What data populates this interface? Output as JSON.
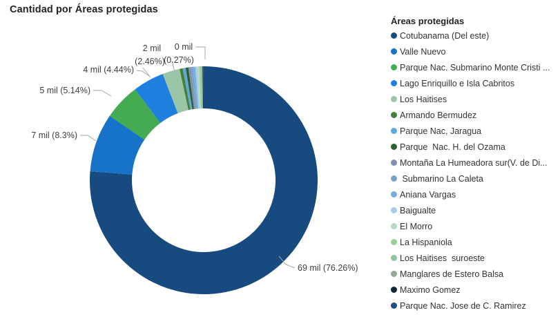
{
  "title": "Cantidad por Áreas protegidas",
  "legend": {
    "title": "Áreas protegidas"
  },
  "chart_data": {
    "type": "pie",
    "variant": "donut",
    "title": "Cantidad por Áreas protegidas",
    "legend_title": "Áreas protegidas",
    "legend_position": "right",
    "value_unit_label": "mil",
    "label_color": "#3F3F3F",
    "leader_color": "#A6A6A6",
    "slices": [
      {
        "name": "Cotubanama (Del este)",
        "color": "#174A7E",
        "pct": 76.26,
        "label_value": "69 mil",
        "label_pct": "(76.26%)"
      },
      {
        "name": "Valle Nuevo",
        "color": "#1673C8",
        "pct": 8.3,
        "label_value": "7 mil",
        "label_pct": "(8.3%)"
      },
      {
        "name": "Parque Nac. Submarino Monte Cristi ...",
        "color": "#45AB52",
        "pct": 5.14,
        "label_value": "5 mil",
        "label_pct": "(5.14%)"
      },
      {
        "name": "Lago Enriquillo e Isla Cabritos",
        "color": "#1E7FDE",
        "pct": 4.44,
        "label_value": "4 mil",
        "label_pct": "(4.44%)"
      },
      {
        "name": "Los Haitises",
        "color": "#9AC6A7",
        "pct": 2.46,
        "label_value": "2 mil",
        "label_pct": "(2.46%)"
      },
      {
        "name": "Armando Bermudez",
        "color": "#45803A",
        "pct": 0.45
      },
      {
        "name": "Parque Nac, Jaragua",
        "color": "#5FA8DD",
        "pct": 0.42
      },
      {
        "name": "Parque  Nac. H. del Ozama",
        "color": "#2D6032",
        "pct": 0.38
      },
      {
        "name": "Montaña La Humeadora sur(V. de Di...",
        "color": "#8191AE",
        "pct": 0.35
      },
      {
        "name": " Submarino La Caleta",
        "color": "#7BA2C9",
        "pct": 0.32
      },
      {
        "name": "Aniana Vargas",
        "color": "#75AFE0",
        "pct": 0.3
      },
      {
        "name": "Baigualte",
        "color": "#A8CBEA",
        "pct": 0.28
      },
      {
        "name": "El Morro",
        "color": "#B5D9C3",
        "pct": 0.27,
        "label_value": "0 mil",
        "label_pct": "(0.27%)"
      },
      {
        "name": "La Hispaniola",
        "color": "#97D294",
        "pct": 0.2
      },
      {
        "name": "Los Haitises  suroeste",
        "color": "#8FC69C",
        "pct": 0.15
      },
      {
        "name": "Manglares de Estero Balsa",
        "color": "#92A795",
        "pct": 0.12
      },
      {
        "name": "Maximo Gomez",
        "color": "#0F2439",
        "pct": 0.09
      },
      {
        "name": "Parque Nac. Jose de C. Ramirez",
        "color": "#1C4E84",
        "pct": 0.07
      }
    ]
  }
}
